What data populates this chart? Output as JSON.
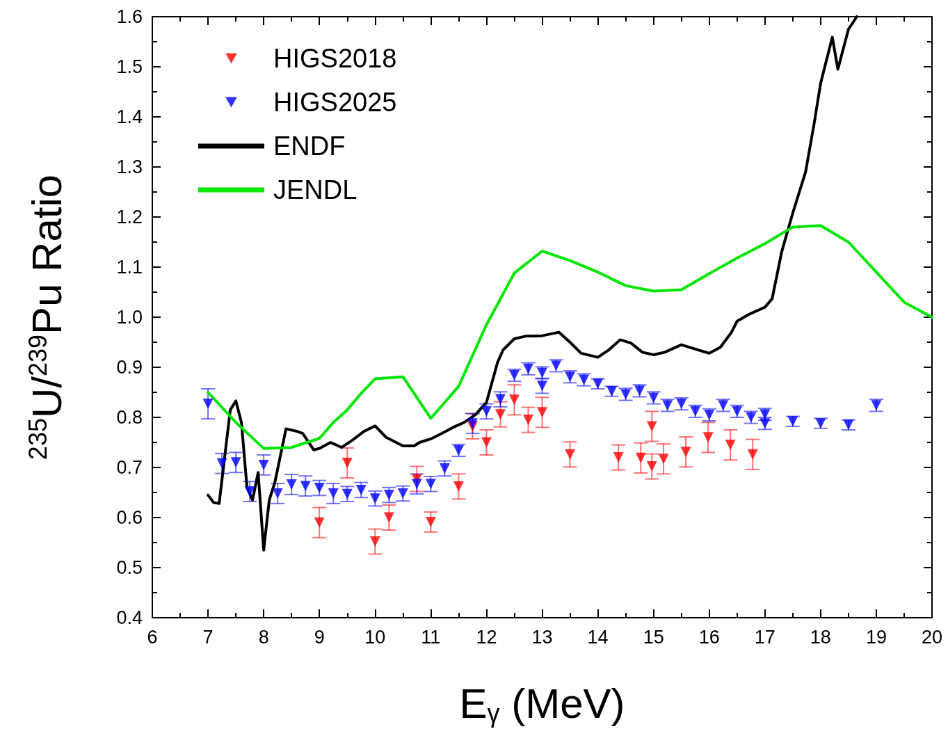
{
  "chart_data": {
    "type": "scatter",
    "xlabel": "E$_{γ}$ (MeV)",
    "ylabel": "$^{235}$U/$^{239}$Pu Ratio",
    "xlim": [
      6,
      20
    ],
    "xticks": [
      6,
      7,
      8,
      9,
      10,
      11,
      12,
      13,
      14,
      15,
      16,
      17,
      18,
      19,
      20
    ],
    "ylim": [
      0.4,
      1.6
    ],
    "yticks": [
      0.4,
      0.5,
      0.6,
      0.7,
      0.8,
      0.9,
      {
        "value": 1,
        "label": "1.0"
      },
      1.1,
      1.2,
      1.3,
      1.4,
      1.5,
      1.6
    ],
    "grid": false,
    "legend": "top left",
    "marker": "triangle",
    "series": [
      {
        "name": "HIGS2018",
        "color": "#ff0000",
        "x": [
          9.0,
          9.5,
          10.0,
          10.25,
          10.75,
          11.0,
          11.5,
          11.75,
          12.0,
          12.25,
          12.5,
          12.75,
          13.0,
          13.5,
          14.37,
          14.77,
          14.97,
          14.97,
          15.18,
          15.58,
          15.98,
          16.38,
          16.78
        ],
        "values": [
          0.59,
          0.709,
          0.552,
          0.6,
          0.677,
          0.591,
          0.662,
          0.782,
          0.75,
          0.806,
          0.835,
          0.795,
          0.81,
          0.726,
          0.72,
          0.719,
          0.782,
          0.702,
          0.717,
          0.731,
          0.76,
          0.745,
          0.726
        ],
        "errors": [
          0.03,
          0.03,
          0.025,
          0.025,
          0.025,
          0.02,
          0.025,
          0.025,
          0.025,
          0.025,
          0.03,
          0.025,
          0.03,
          0.025,
          0.025,
          0.03,
          0.03,
          0.025,
          0.03,
          0.03,
          0.03,
          0.03,
          0.03
        ]
      },
      {
        "name": "HIGS2025",
        "color": "#0000ff",
        "x": [
          7.0,
          7.25,
          7.5,
          7.75,
          8.0,
          8.25,
          8.5,
          8.75,
          9.0,
          9.25,
          9.5,
          9.75,
          10.0,
          10.25,
          10.5,
          10.75,
          11.0,
          11.25,
          11.5,
          11.75,
          12.0,
          12.25,
          12.5,
          12.75,
          13.0,
          13.0,
          13.25,
          13.5,
          13.75,
          14.0,
          14.25,
          14.5,
          14.75,
          15.0,
          15.25,
          15.5,
          15.75,
          16.0,
          16.25,
          16.5,
          16.75,
          17.0,
          17.0,
          17.5,
          18.0,
          18.5,
          19.0
        ],
        "values": [
          0.827,
          0.708,
          0.71,
          0.652,
          0.705,
          0.648,
          0.666,
          0.663,
          0.659,
          0.648,
          0.647,
          0.655,
          0.638,
          0.645,
          0.648,
          0.667,
          0.667,
          0.698,
          0.734,
          0.788,
          0.812,
          0.836,
          0.884,
          0.897,
          0.889,
          0.863,
          0.903,
          0.881,
          0.875,
          0.867,
          0.852,
          0.846,
          0.853,
          0.839,
          0.824,
          0.827,
          0.812,
          0.805,
          0.824,
          0.812,
          0.8,
          0.806,
          0.788,
          0.792,
          0.788,
          0.785,
          0.824
        ],
        "errors": [
          0.03,
          0.02,
          0.02,
          0.02,
          0.02,
          0.02,
          0.02,
          0.02,
          0.015,
          0.02,
          0.015,
          0.015,
          0.015,
          0.015,
          0.015,
          0.02,
          0.015,
          0.015,
          0.012,
          0.02,
          0.015,
          0.015,
          0.012,
          0.012,
          0.012,
          0.015,
          0.012,
          0.012,
          0.012,
          0.01,
          0.01,
          0.012,
          0.012,
          0.012,
          0.012,
          0.012,
          0.012,
          0.012,
          0.012,
          0.012,
          0.012,
          0.012,
          0.012,
          0.01,
          0.01,
          0.01,
          0.012
        ]
      },
      {
        "name": "ENDF",
        "type": "line",
        "marker": "none",
        "line_style": "solid",
        "color": "#000000",
        "x": [
          7.0,
          7.1,
          7.2,
          7.4,
          7.5,
          7.6,
          7.7,
          7.8,
          7.9,
          8.0,
          8.1,
          8.2,
          8.4,
          8.6,
          8.7,
          8.9,
          9.0,
          9.2,
          9.3,
          9.4,
          9.6,
          9.8,
          10.0,
          10.2,
          10.5,
          10.7,
          10.8,
          11.0,
          11.2,
          11.4,
          11.6,
          11.8,
          12.0,
          12.2,
          12.3,
          12.5,
          12.7,
          13.0,
          13.3,
          13.5,
          13.7,
          14.0,
          14.2,
          14.4,
          14.6,
          14.8,
          15.0,
          15.2,
          15.5,
          15.7,
          16.0,
          16.2,
          16.4,
          16.5,
          16.7,
          16.9,
          17.0,
          17.13,
          17.3,
          17.5,
          17.73,
          17.88,
          18.0,
          18.21,
          18.31,
          18.5,
          18.65
        ],
        "values": [
          0.645,
          0.63,
          0.628,
          0.815,
          0.833,
          0.79,
          0.66,
          0.635,
          0.69,
          0.535,
          0.635,
          0.67,
          0.777,
          0.772,
          0.768,
          0.735,
          0.738,
          0.75,
          0.745,
          0.74,
          0.755,
          0.772,
          0.783,
          0.76,
          0.743,
          0.743,
          0.75,
          0.757,
          0.768,
          0.78,
          0.79,
          0.805,
          0.83,
          0.91,
          0.935,
          0.957,
          0.962,
          0.963,
          0.97,
          0.95,
          0.928,
          0.92,
          0.935,
          0.955,
          0.948,
          0.93,
          0.925,
          0.93,
          0.945,
          0.938,
          0.928,
          0.94,
          0.97,
          0.992,
          1.005,
          1.015,
          1.02,
          1.037,
          1.13,
          1.208,
          1.29,
          1.384,
          1.467,
          1.559,
          1.495,
          1.575,
          1.6
        ]
      },
      {
        "name": "JENDL",
        "type": "line",
        "marker": "none",
        "line_style": "solid",
        "color": "#00e600",
        "x": [
          7.0,
          7.5,
          8.0,
          8.5,
          9.0,
          9.25,
          9.5,
          9.75,
          10.0,
          10.5,
          11.0,
          11.5,
          12.0,
          12.5,
          13.0,
          13.5,
          14.0,
          14.5,
          15.0,
          15.5,
          16.0,
          16.5,
          17.0,
          17.5,
          18.0,
          18.5,
          19.0,
          19.5,
          20.0
        ],
        "values": [
          0.85,
          0.79,
          0.738,
          0.74,
          0.758,
          0.79,
          0.815,
          0.848,
          0.877,
          0.881,
          0.798,
          0.862,
          0.985,
          1.088,
          1.132,
          1.113,
          1.09,
          1.063,
          1.052,
          1.055,
          1.087,
          1.118,
          1.147,
          1.18,
          1.183,
          1.15,
          1.09,
          1.03,
          1.0
        ]
      }
    ]
  }
}
